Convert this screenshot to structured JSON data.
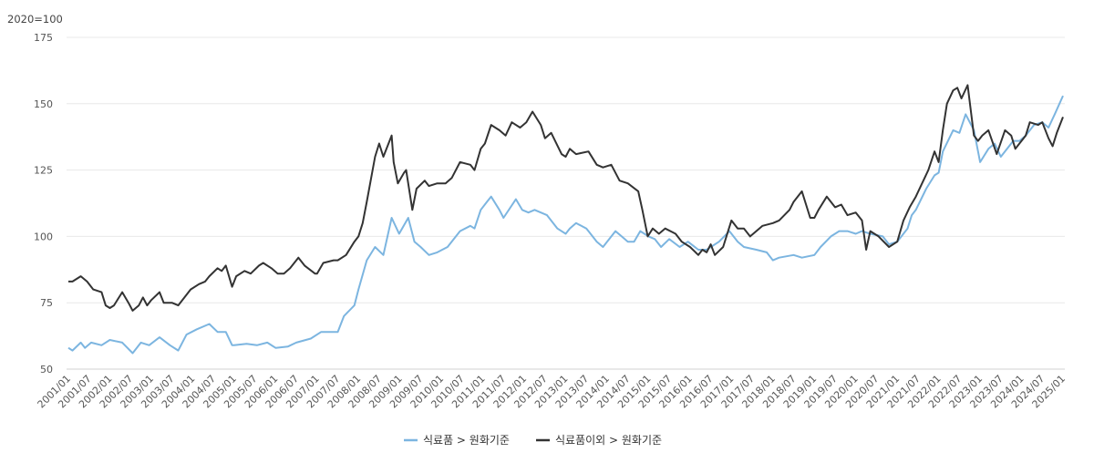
{
  "chart_data": {
    "type": "line",
    "title": "",
    "unit_label": "2020=100",
    "xlabel": "",
    "ylabel": "",
    "ylim": [
      50,
      175
    ],
    "xlim": [
      2001.0,
      2025.0
    ],
    "yticks": [
      50,
      75,
      100,
      125,
      150,
      175
    ],
    "xtick_labels": [
      "2001/01",
      "2001/07",
      "2002/01",
      "2002/07",
      "2003/01",
      "2003/07",
      "2004/01",
      "2004/07",
      "2005/01",
      "2005/07",
      "2006/01",
      "2006/07",
      "2007/01",
      "2007/07",
      "2008/01",
      "2008/07",
      "2009/01",
      "2009/07",
      "2010/01",
      "2010/07",
      "2011/01",
      "2011/07",
      "2012/01",
      "2012/07",
      "2013/01",
      "2013/07",
      "2014/01",
      "2014/07",
      "2015/01",
      "2015/07",
      "2016/01",
      "2016/07",
      "2017/01",
      "2017/07",
      "2018/01",
      "2018/07",
      "2019/01",
      "2019/07",
      "2020/01",
      "2020/07",
      "2021/01",
      "2021/07",
      "2022/01",
      "2022/07",
      "2023/01",
      "2023/07",
      "2024/01",
      "2024/07",
      "2025/01"
    ],
    "grid": true,
    "legend_position": "bottom-center",
    "series": [
      {
        "name": "식료품 > 원화기준",
        "color": "#7cb5e0",
        "points": [
          [
            2001.0,
            58
          ],
          [
            2001.1,
            57
          ],
          [
            2001.3,
            60
          ],
          [
            2001.4,
            58
          ],
          [
            2001.55,
            60
          ],
          [
            2001.8,
            59
          ],
          [
            2002.0,
            61
          ],
          [
            2002.3,
            60
          ],
          [
            2002.55,
            56
          ],
          [
            2002.75,
            60
          ],
          [
            2002.95,
            59
          ],
          [
            2003.2,
            62
          ],
          [
            2003.45,
            59
          ],
          [
            2003.65,
            57
          ],
          [
            2003.85,
            63
          ],
          [
            2004.1,
            65
          ],
          [
            2004.4,
            67
          ],
          [
            2004.6,
            64
          ],
          [
            2004.8,
            64
          ],
          [
            2004.95,
            59
          ],
          [
            2005.0,
            59
          ],
          [
            2005.3,
            59.5
          ],
          [
            2005.55,
            59
          ],
          [
            2005.8,
            60
          ],
          [
            2006.0,
            58
          ],
          [
            2006.3,
            58.5
          ],
          [
            2006.5,
            60
          ],
          [
            2006.85,
            61.5
          ],
          [
            2007.1,
            64
          ],
          [
            2007.5,
            64
          ],
          [
            2007.65,
            70
          ],
          [
            2007.9,
            74
          ],
          [
            2008.0,
            80
          ],
          [
            2008.2,
            91
          ],
          [
            2008.4,
            96
          ],
          [
            2008.6,
            93
          ],
          [
            2008.8,
            107
          ],
          [
            2008.98,
            101
          ],
          [
            2009.2,
            107
          ],
          [
            2009.35,
            98
          ],
          [
            2009.5,
            96
          ],
          [
            2009.7,
            93
          ],
          [
            2009.9,
            94
          ],
          [
            2010.15,
            96
          ],
          [
            2010.45,
            102
          ],
          [
            2010.7,
            104
          ],
          [
            2010.8,
            103
          ],
          [
            2010.95,
            110
          ],
          [
            2011.1,
            113
          ],
          [
            2011.2,
            115
          ],
          [
            2011.4,
            110
          ],
          [
            2011.5,
            107
          ],
          [
            2011.8,
            114
          ],
          [
            2011.95,
            110
          ],
          [
            2012.1,
            109
          ],
          [
            2012.25,
            110
          ],
          [
            2012.55,
            108
          ],
          [
            2012.8,
            103
          ],
          [
            2013.0,
            101
          ],
          [
            2013.1,
            103
          ],
          [
            2013.25,
            105
          ],
          [
            2013.5,
            103
          ],
          [
            2013.75,
            98
          ],
          [
            2013.9,
            96
          ],
          [
            2014.2,
            102
          ],
          [
            2014.35,
            100
          ],
          [
            2014.5,
            98
          ],
          [
            2014.65,
            98
          ],
          [
            2014.8,
            102
          ],
          [
            2015.0,
            100
          ],
          [
            2015.15,
            99
          ],
          [
            2015.3,
            96
          ],
          [
            2015.5,
            99
          ],
          [
            2015.75,
            96
          ],
          [
            2015.95,
            98
          ],
          [
            2016.2,
            95
          ],
          [
            2016.4,
            95
          ],
          [
            2016.7,
            98
          ],
          [
            2016.95,
            102
          ],
          [
            2017.15,
            98
          ],
          [
            2017.3,
            96
          ],
          [
            2017.6,
            95
          ],
          [
            2017.85,
            94
          ],
          [
            2018.0,
            91
          ],
          [
            2018.15,
            92
          ],
          [
            2018.5,
            93
          ],
          [
            2018.7,
            92
          ],
          [
            2019.0,
            93
          ],
          [
            2019.15,
            96
          ],
          [
            2019.4,
            100
          ],
          [
            2019.6,
            102
          ],
          [
            2019.8,
            102
          ],
          [
            2020.0,
            101
          ],
          [
            2020.15,
            102
          ],
          [
            2020.35,
            101
          ],
          [
            2020.65,
            100
          ],
          [
            2020.8,
            97
          ],
          [
            2021.0,
            98
          ],
          [
            2021.25,
            103
          ],
          [
            2021.35,
            108
          ],
          [
            2021.45,
            110
          ],
          [
            2021.7,
            118
          ],
          [
            2021.9,
            123
          ],
          [
            2022.0,
            124
          ],
          [
            2022.1,
            132
          ],
          [
            2022.35,
            140
          ],
          [
            2022.5,
            139
          ],
          [
            2022.65,
            146
          ],
          [
            2022.85,
            140
          ],
          [
            2023.0,
            128
          ],
          [
            2023.2,
            133
          ],
          [
            2023.35,
            135
          ],
          [
            2023.5,
            130
          ],
          [
            2023.8,
            136
          ],
          [
            2023.95,
            136
          ],
          [
            2024.1,
            138
          ],
          [
            2024.3,
            142
          ],
          [
            2024.5,
            143
          ],
          [
            2024.65,
            141
          ],
          [
            2024.8,
            146
          ],
          [
            2025.0,
            153
          ]
        ]
      },
      {
        "name": "식료품이외 > 원화기준",
        "color": "#333333",
        "points": [
          [
            2001.0,
            83
          ],
          [
            2001.1,
            83
          ],
          [
            2001.3,
            85
          ],
          [
            2001.45,
            83
          ],
          [
            2001.6,
            80
          ],
          [
            2001.8,
            79
          ],
          [
            2001.9,
            74
          ],
          [
            2002.0,
            73
          ],
          [
            2002.1,
            74
          ],
          [
            2002.3,
            79
          ],
          [
            2002.45,
            75
          ],
          [
            2002.55,
            72
          ],
          [
            2002.7,
            74
          ],
          [
            2002.8,
            77
          ],
          [
            2002.9,
            74
          ],
          [
            2003.0,
            76
          ],
          [
            2003.2,
            79
          ],
          [
            2003.3,
            75
          ],
          [
            2003.5,
            75
          ],
          [
            2003.65,
            74
          ],
          [
            2003.8,
            77
          ],
          [
            2003.95,
            80
          ],
          [
            2004.15,
            82
          ],
          [
            2004.3,
            83
          ],
          [
            2004.4,
            85
          ],
          [
            2004.6,
            88
          ],
          [
            2004.7,
            87
          ],
          [
            2004.8,
            89
          ],
          [
            2004.95,
            81
          ],
          [
            2005.05,
            85
          ],
          [
            2005.25,
            87
          ],
          [
            2005.4,
            86
          ],
          [
            2005.6,
            89
          ],
          [
            2005.7,
            90
          ],
          [
            2005.9,
            88
          ],
          [
            2006.05,
            86
          ],
          [
            2006.2,
            86
          ],
          [
            2006.35,
            88
          ],
          [
            2006.55,
            92
          ],
          [
            2006.7,
            89
          ],
          [
            2006.95,
            86
          ],
          [
            2007.0,
            86
          ],
          [
            2007.15,
            90
          ],
          [
            2007.4,
            91
          ],
          [
            2007.5,
            91
          ],
          [
            2007.7,
            93
          ],
          [
            2007.9,
            98
          ],
          [
            2008.0,
            100
          ],
          [
            2008.1,
            105
          ],
          [
            2008.2,
            113
          ],
          [
            2008.4,
            130
          ],
          [
            2008.5,
            135
          ],
          [
            2008.6,
            130
          ],
          [
            2008.8,
            138
          ],
          [
            2008.85,
            128
          ],
          [
            2008.95,
            120
          ],
          [
            2009.1,
            124
          ],
          [
            2009.15,
            125
          ],
          [
            2009.3,
            110
          ],
          [
            2009.4,
            118
          ],
          [
            2009.6,
            121
          ],
          [
            2009.7,
            119
          ],
          [
            2009.9,
            120
          ],
          [
            2010.1,
            120
          ],
          [
            2010.25,
            122
          ],
          [
            2010.45,
            128
          ],
          [
            2010.7,
            127
          ],
          [
            2010.8,
            125
          ],
          [
            2010.95,
            133
          ],
          [
            2011.05,
            135
          ],
          [
            2011.2,
            142
          ],
          [
            2011.4,
            140
          ],
          [
            2011.55,
            138
          ],
          [
            2011.7,
            143
          ],
          [
            2011.9,
            141
          ],
          [
            2012.05,
            143
          ],
          [
            2012.2,
            147
          ],
          [
            2012.4,
            142
          ],
          [
            2012.5,
            137
          ],
          [
            2012.65,
            139
          ],
          [
            2012.9,
            131
          ],
          [
            2013.0,
            130
          ],
          [
            2013.1,
            133
          ],
          [
            2013.25,
            131
          ],
          [
            2013.55,
            132
          ],
          [
            2013.75,
            127
          ],
          [
            2013.9,
            126
          ],
          [
            2014.1,
            127
          ],
          [
            2014.3,
            121
          ],
          [
            2014.5,
            120
          ],
          [
            2014.75,
            117
          ],
          [
            2014.85,
            110
          ],
          [
            2014.98,
            100
          ],
          [
            2015.1,
            103
          ],
          [
            2015.25,
            101
          ],
          [
            2015.4,
            103
          ],
          [
            2015.65,
            101
          ],
          [
            2015.8,
            98
          ],
          [
            2016.0,
            96
          ],
          [
            2016.2,
            93
          ],
          [
            2016.3,
            95
          ],
          [
            2016.4,
            94
          ],
          [
            2016.5,
            97
          ],
          [
            2016.6,
            93
          ],
          [
            2016.8,
            96
          ],
          [
            2017.0,
            106
          ],
          [
            2017.15,
            103
          ],
          [
            2017.3,
            103
          ],
          [
            2017.45,
            100
          ],
          [
            2017.75,
            104
          ],
          [
            2018.0,
            105
          ],
          [
            2018.15,
            106
          ],
          [
            2018.4,
            110
          ],
          [
            2018.5,
            113
          ],
          [
            2018.7,
            117
          ],
          [
            2018.9,
            107
          ],
          [
            2019.0,
            107
          ],
          [
            2019.1,
            110
          ],
          [
            2019.3,
            115
          ],
          [
            2019.5,
            111
          ],
          [
            2019.65,
            112
          ],
          [
            2019.8,
            108
          ],
          [
            2020.0,
            109
          ],
          [
            2020.15,
            106
          ],
          [
            2020.25,
            95
          ],
          [
            2020.35,
            102
          ],
          [
            2020.55,
            100
          ],
          [
            2020.8,
            96
          ],
          [
            2021.0,
            98
          ],
          [
            2021.15,
            106
          ],
          [
            2021.3,
            111
          ],
          [
            2021.45,
            115
          ],
          [
            2021.6,
            120
          ],
          [
            2021.75,
            125
          ],
          [
            2021.9,
            132
          ],
          [
            2022.0,
            128
          ],
          [
            2022.1,
            140
          ],
          [
            2022.2,
            150
          ],
          [
            2022.35,
            155
          ],
          [
            2022.45,
            156
          ],
          [
            2022.55,
            152
          ],
          [
            2022.7,
            157
          ],
          [
            2022.85,
            138
          ],
          [
            2022.95,
            136
          ],
          [
            2023.05,
            138
          ],
          [
            2023.2,
            140
          ],
          [
            2023.4,
            131
          ],
          [
            2023.6,
            140
          ],
          [
            2023.75,
            138
          ],
          [
            2023.85,
            133
          ],
          [
            2024.1,
            138
          ],
          [
            2024.2,
            143
          ],
          [
            2024.4,
            142
          ],
          [
            2024.5,
            143
          ],
          [
            2024.65,
            137
          ],
          [
            2024.75,
            134
          ],
          [
            2024.85,
            139
          ],
          [
            2025.0,
            145
          ]
        ]
      }
    ]
  }
}
